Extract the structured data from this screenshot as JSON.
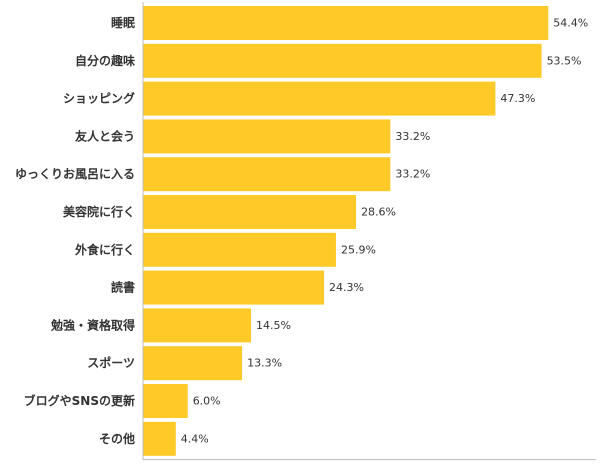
{
  "chart_data": {
    "type": "bar",
    "orientation": "horizontal",
    "categories": [
      "睡眠",
      "自分の趣味",
      "ショッピング",
      "友人と会う",
      "ゆっくりお風呂に入る",
      "美容院に行く",
      "外食に行く",
      "読書",
      "勉強・資格取得",
      "スポーツ",
      "ブログやSNSの更新",
      "その他"
    ],
    "values": [
      54.4,
      53.5,
      47.3,
      33.2,
      33.2,
      28.6,
      25.9,
      24.3,
      14.5,
      13.3,
      6.0,
      4.4
    ],
    "value_labels": [
      "54.4%",
      "53.5%",
      "47.3%",
      "33.2%",
      "33.2%",
      "28.6%",
      "25.9%",
      "24.3%",
      "14.5%",
      "13.3%",
      "6.0%",
      "4.4%"
    ],
    "unit": "%",
    "xlim": [
      0,
      60
    ],
    "grid": false,
    "legend": "none",
    "bar_color": "#ffca28",
    "axis_color": "#bdbdbd"
  }
}
